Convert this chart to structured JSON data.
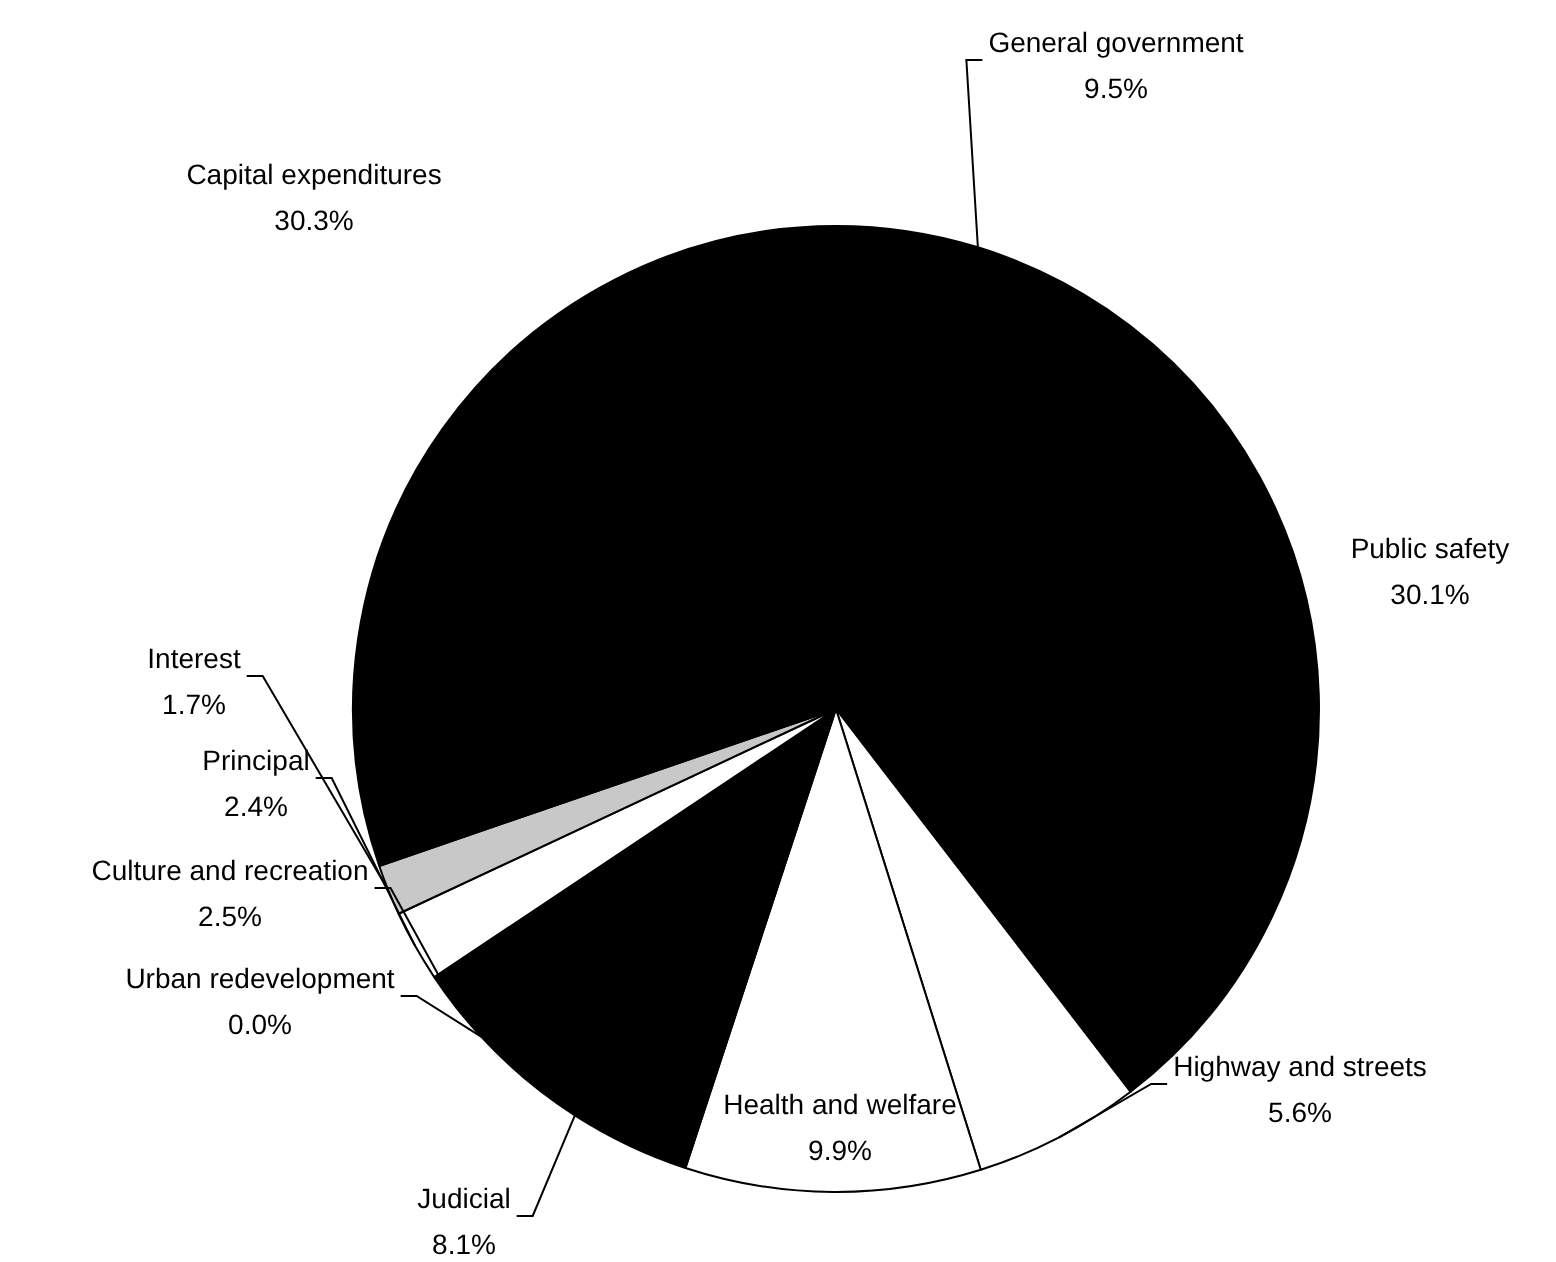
{
  "chart_data": {
    "type": "pie",
    "categories": [
      "General government",
      "Public safety",
      "Highway and streets",
      "Health and welfare",
      "Judicial",
      "Urban redevelopment",
      "Culture and recreation",
      "Principal",
      "Interest",
      "Capital expenditures"
    ],
    "values": [
      9.5,
      30.1,
      5.6,
      9.9,
      8.1,
      0.0,
      2.5,
      2.4,
      1.7,
      30.3
    ],
    "value_labels": [
      "9.5%",
      "30.1%",
      "5.6%",
      "9.9%",
      "8.1%",
      "0.0%",
      "2.5%",
      "2.4%",
      "1.7%",
      "30.3%"
    ],
    "colors": [
      "#000000",
      "#000000",
      "#ffffff",
      "#ffffff",
      "#000000",
      "#000000",
      "#000000",
      "#ffffff",
      "#c8c8c8",
      "#000000"
    ],
    "legend": false
  }
}
